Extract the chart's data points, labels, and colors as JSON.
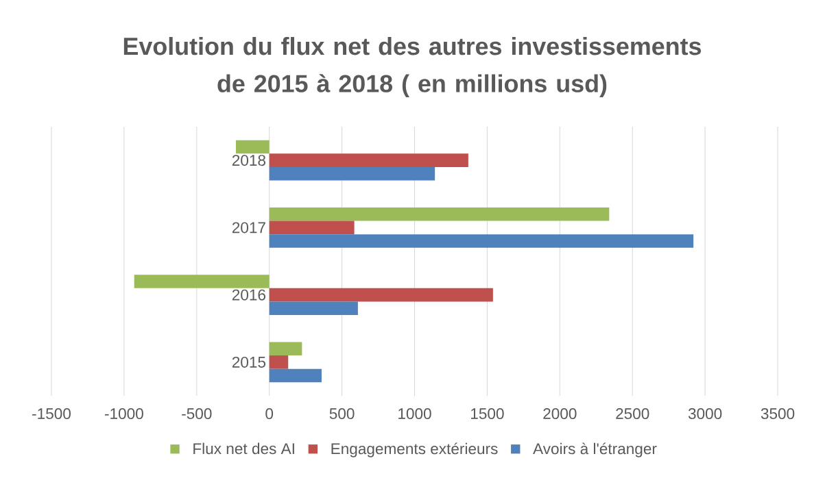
{
  "chart_data": {
    "type": "bar",
    "orientation": "horizontal",
    "title": "Evolution du flux net des autres investissements de 2015 à 2018 ( en millions usd)",
    "categories": [
      "2018",
      "2017",
      "2016",
      "2015"
    ],
    "series": [
      {
        "name": "Flux net des AI",
        "color": "#9bbb59",
        "values": [
          -230,
          2340,
          -930,
          225
        ]
      },
      {
        "name": "Engagements extérieurs",
        "color": "#c0504d",
        "values": [
          1370,
          585,
          1540,
          130
        ]
      },
      {
        "name": "Avoirs à l'étranger",
        "color": "#4f81bd",
        "values": [
          1140,
          2920,
          610,
          360
        ]
      }
    ],
    "xlim": [
      -1500,
      3500
    ],
    "xticks": [
      -1500,
      -1000,
      -500,
      0,
      500,
      1000,
      1500,
      2000,
      2500,
      3000,
      3500
    ],
    "grid": "x",
    "legend": "bottom"
  }
}
